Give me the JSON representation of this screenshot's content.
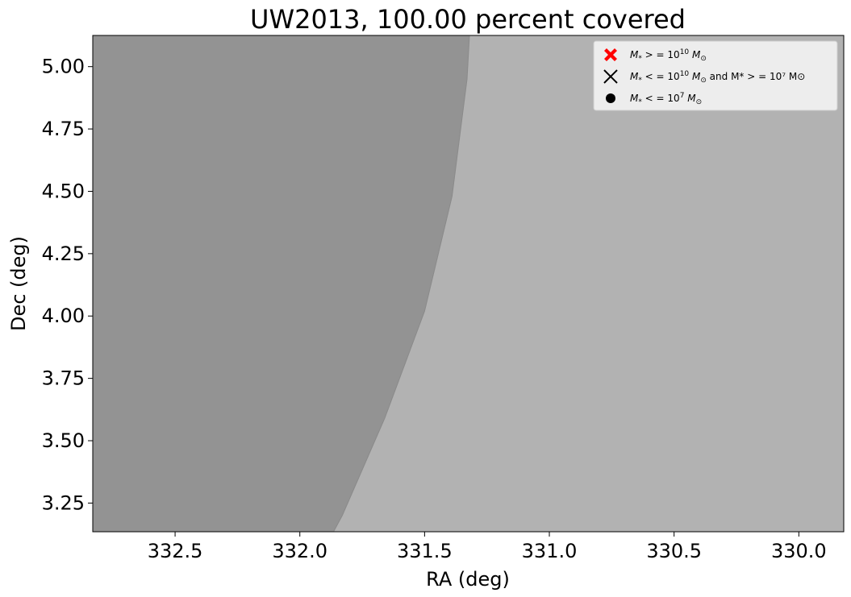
{
  "chart_data": {
    "type": "area",
    "title": "UW2013, 100.00 percent covered",
    "xlabel": "RA (deg)",
    "ylabel": "Dec (deg)",
    "xlim": [
      332.83,
      329.82
    ],
    "ylim": [
      3.135,
      5.125
    ],
    "x_inverted": true,
    "xticks": [
      332.5,
      332.0,
      331.5,
      331.0,
      330.5,
      330.0
    ],
    "xtick_labels": [
      "332.5",
      "332.0",
      "331.5",
      "331.0",
      "330.5",
      "330.0"
    ],
    "yticks": [
      3.25,
      3.5,
      3.75,
      4.0,
      4.25,
      4.5,
      4.75,
      5.0
    ],
    "ytick_labels": [
      "3.25",
      "3.50",
      "3.75",
      "4.00",
      "4.25",
      "4.50",
      "4.75",
      "5.00"
    ],
    "grid": false,
    "background_color": "#b2b2b2",
    "regions": [
      {
        "fill": "#939393",
        "boundary": [
          {
            "ra": 332.83,
            "dec": 3.135
          },
          {
            "ra": 331.865,
            "dec": 3.135
          },
          {
            "ra": 331.83,
            "dec": 3.2
          },
          {
            "ra": 331.66,
            "dec": 3.59
          },
          {
            "ra": 331.5,
            "dec": 4.02
          },
          {
            "ra": 331.39,
            "dec": 4.48
          },
          {
            "ra": 331.33,
            "dec": 4.95
          },
          {
            "ra": 331.32,
            "dec": 5.125
          },
          {
            "ra": 332.83,
            "dec": 5.125
          }
        ]
      }
    ],
    "legend": {
      "position": "upper-right",
      "entries": [
        {
          "marker": "filled-x",
          "color": "#ff0000",
          "label_pre": "M",
          "label_sub": "*",
          "label_mid": " > = 10",
          "label_sup": "10",
          "label_post": "M",
          "label_post_sub": "⊙",
          "label_extra": ""
        },
        {
          "marker": "x",
          "color": "#000000",
          "label_pre": "M",
          "label_sub": "*",
          "label_mid": " < = 10",
          "label_sup": "10",
          "label_post": "M",
          "label_post_sub": "⊙",
          "label_extra": "  and  M* > = 10⁷ M⊙"
        },
        {
          "marker": "circle",
          "color": "#000000",
          "label_pre": "M",
          "label_sub": "*",
          "label_mid": " < = 10",
          "label_sup": "7",
          "label_post": "M",
          "label_post_sub": "⊙",
          "label_extra": ""
        }
      ]
    }
  }
}
